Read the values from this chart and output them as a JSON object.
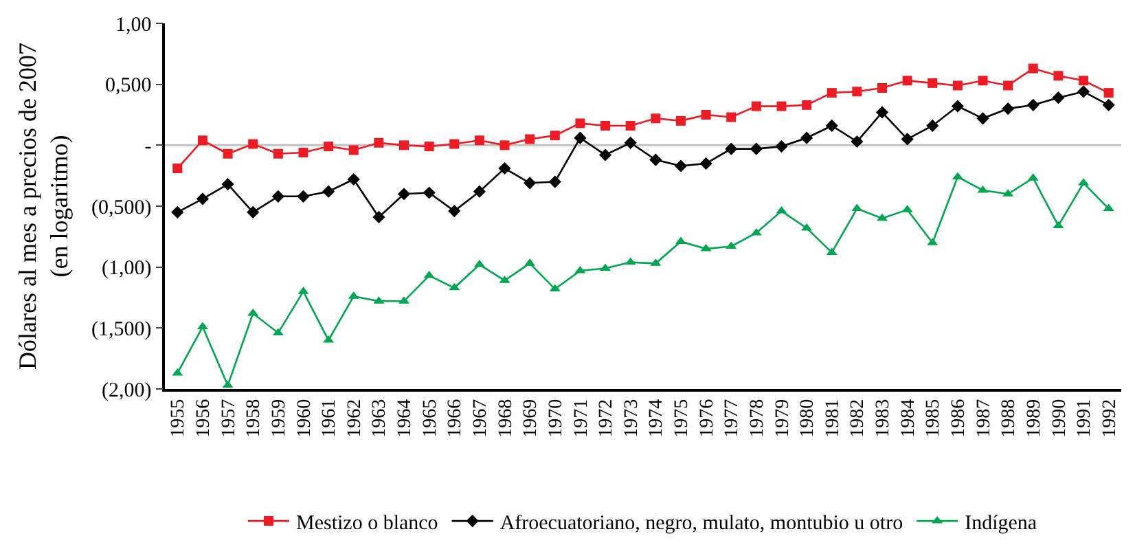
{
  "chart_data": {
    "type": "line",
    "ylabel": "Dólares al mes a precios de 2007\n(en logaritmo)",
    "categories": [
      "1955",
      "1956",
      "1957",
      "1958",
      "1959",
      "1960",
      "1961",
      "1962",
      "1963",
      "1964",
      "1965",
      "1966",
      "1967",
      "1968",
      "1969",
      "1970",
      "1971",
      "1972",
      "1973",
      "1974",
      "1975",
      "1976",
      "1977",
      "1978",
      "1979",
      "1980",
      "1981",
      "1982",
      "1983",
      "1984",
      "1985",
      "1986",
      "1987",
      "1988",
      "1989",
      "1990",
      "1991",
      "1992"
    ],
    "series": [
      {
        "name": "Mestizo o blanco",
        "color": "#ed1c24",
        "marker": "square",
        "values": [
          -0.19,
          0.04,
          -0.07,
          0.01,
          -0.07,
          -0.06,
          -0.01,
          -0.04,
          0.02,
          0.0,
          -0.01,
          0.01,
          0.04,
          0.0,
          0.05,
          0.08,
          0.18,
          0.16,
          0.16,
          0.22,
          0.2,
          0.25,
          0.23,
          0.32,
          0.32,
          0.33,
          0.43,
          0.44,
          0.47,
          0.53,
          0.51,
          0.49,
          0.53,
          0.49,
          0.63,
          0.57,
          0.53,
          0.43
        ]
      },
      {
        "name": "Afroecuatoriano, negro, mulato, montubio u otro",
        "color": "#000000",
        "marker": "diamond",
        "values": [
          -0.55,
          -0.44,
          -0.32,
          -0.55,
          -0.42,
          -0.42,
          -0.38,
          -0.28,
          -0.59,
          -0.4,
          -0.39,
          -0.54,
          -0.38,
          -0.19,
          -0.31,
          -0.3,
          0.06,
          -0.08,
          0.02,
          -0.12,
          -0.17,
          -0.15,
          -0.03,
          -0.03,
          -0.01,
          0.06,
          0.16,
          0.03,
          0.27,
          0.05,
          0.16,
          0.32,
          0.22,
          0.3,
          0.33,
          0.39,
          0.44,
          0.33
        ]
      },
      {
        "name": "Indígena",
        "color": "#00a651",
        "marker": "triangle",
        "values": [
          -1.87,
          -1.49,
          -1.97,
          -1.38,
          -1.54,
          -1.2,
          -1.6,
          -1.24,
          -1.28,
          -1.28,
          -1.07,
          -1.17,
          -0.98,
          -1.11,
          -0.97,
          -1.18,
          -1.03,
          -1.01,
          -0.96,
          -0.97,
          -0.79,
          -0.85,
          -0.83,
          -0.72,
          -0.54,
          -0.68,
          -0.88,
          -0.52,
          -0.6,
          -0.53,
          -0.8,
          -0.26,
          -0.37,
          -0.4,
          -0.27,
          -0.66,
          -0.31,
          -0.52
        ]
      }
    ],
    "ylim": [
      -2,
      1
    ],
    "yticks": [
      {
        "value": 1,
        "label": "1,00"
      },
      {
        "value": 0.5,
        "label": "0,500"
      },
      {
        "value": 0,
        "label": "-"
      },
      {
        "value": -0.5,
        "label": "(0,500)"
      },
      {
        "value": -1,
        "label": "(1,00)"
      },
      {
        "value": -1.5,
        "label": "(1,500)"
      },
      {
        "value": -2,
        "label": "(2,00)"
      }
    ],
    "ref_lines": [
      {
        "axis": "y",
        "value": 0,
        "color": "#c0c0c0"
      }
    ],
    "grid": false,
    "legend": "bottom",
    "line_style": "solid"
  }
}
